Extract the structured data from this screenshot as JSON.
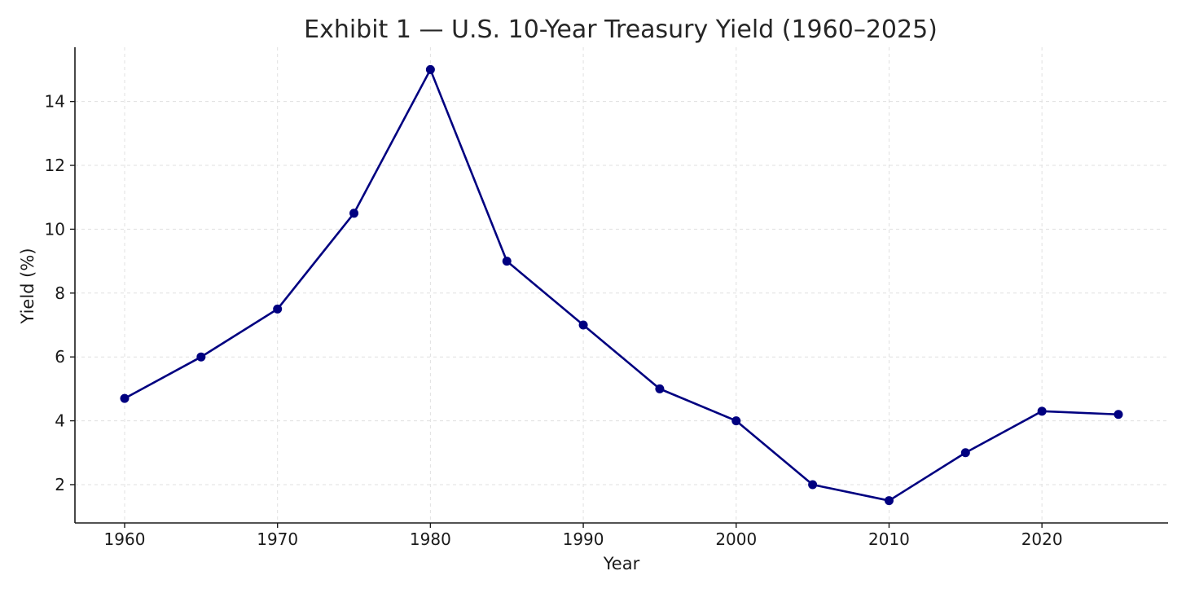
{
  "chart_data": {
    "type": "line",
    "title": "Exhibit 1 — U.S. 10-Year Treasury Yield (1960–2025)",
    "xlabel": "Year",
    "ylabel": "Yield (%)",
    "x": [
      1960,
      1965,
      1970,
      1975,
      1980,
      1985,
      1990,
      1995,
      2000,
      2005,
      2010,
      2015,
      2020,
      2025
    ],
    "series": [
      {
        "values": [
          4.7,
          6.0,
          7.5,
          10.5,
          15.0,
          9.0,
          7.0,
          5.0,
          4.0,
          2.0,
          1.5,
          3.0,
          4.3,
          4.2
        ]
      }
    ],
    "xticks": [
      1960,
      1970,
      1980,
      1990,
      2000,
      2010,
      2020
    ],
    "yticks": [
      2,
      4,
      6,
      8,
      10,
      12,
      14
    ],
    "xlim": [
      1956.75,
      2028.25
    ],
    "ylim": [
      0.8,
      15.7
    ],
    "grid": true,
    "line_color": "#000080",
    "grid_color": "#e0e0e0"
  }
}
